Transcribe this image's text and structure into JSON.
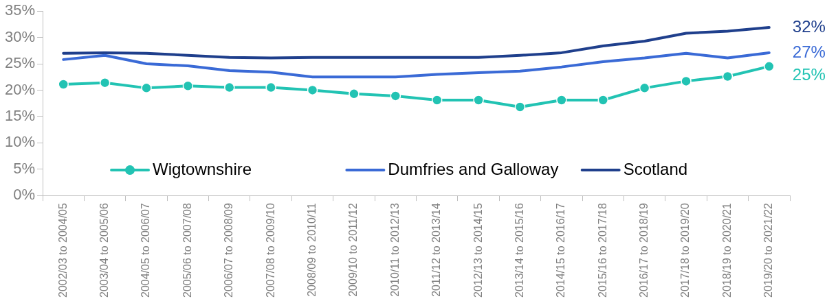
{
  "chart_data": {
    "type": "line",
    "categories": [
      "2002/03 to 2004/05",
      "2003/04 to 2005/06",
      "2004/05 to 2006/07",
      "2005/06 to 2007/08",
      "2006/07 to 2008/09",
      "2007/08 to 2009/10",
      "2008/09 to 2010/11",
      "2009/10 to 2011/12",
      "2010/11 to 2012/13",
      "2011/12 to 2013/14",
      "2012/13 to 2014/15",
      "2013/14 to 2015/16",
      "2014/15 to 2016/17",
      "2015/16 to 2017/18",
      "2016/17 to 2018/19",
      "2017/18 to 2019/20",
      "2018/19 to 2020/21",
      "2019/20 to 2021/22"
    ],
    "series": [
      {
        "name": "Wigtownshire",
        "color": "#22c3b3",
        "marker": "circle",
        "values": [
          21.1,
          21.4,
          20.4,
          20.8,
          20.5,
          20.5,
          20.0,
          19.3,
          18.9,
          18.1,
          18.1,
          16.8,
          18.1,
          18.1,
          20.4,
          21.7,
          22.6,
          24.5
        ],
        "value_labels": [
          null,
          null,
          null,
          null,
          null,
          null,
          null,
          null,
          null,
          null,
          null,
          null,
          null,
          null,
          null,
          null,
          null,
          "25%"
        ]
      },
      {
        "name": "Dumfries and Galloway",
        "color": "#3a6ad6",
        "marker": "none",
        "values": [
          25.8,
          26.6,
          25.0,
          24.6,
          23.7,
          23.4,
          22.5,
          22.5,
          22.5,
          23.0,
          23.3,
          23.6,
          24.4,
          25.4,
          26.1,
          27.0,
          26.1,
          27.1
        ],
        "value_labels": [
          null,
          null,
          null,
          null,
          null,
          null,
          null,
          null,
          null,
          null,
          null,
          null,
          null,
          null,
          null,
          null,
          null,
          "27%"
        ]
      },
      {
        "name": "Scotland",
        "color": "#1f3f8c",
        "marker": "none",
        "values": [
          27.0,
          27.1,
          27.0,
          26.6,
          26.2,
          26.1,
          26.2,
          26.2,
          26.2,
          26.2,
          26.2,
          26.6,
          27.1,
          28.4,
          29.3,
          30.8,
          31.2,
          31.9
        ],
        "value_labels": [
          null,
          null,
          null,
          null,
          null,
          null,
          null,
          null,
          null,
          null,
          null,
          null,
          null,
          null,
          null,
          null,
          null,
          "32%"
        ]
      }
    ],
    "ylim": [
      0,
      35
    ],
    "yticks": [
      {
        "value": 0,
        "label": "0%"
      },
      {
        "value": 5,
        "label": "5%"
      },
      {
        "value": 10,
        "label": "10%"
      },
      {
        "value": 15,
        "label": "15%"
      },
      {
        "value": 20,
        "label": "20%"
      },
      {
        "value": 25,
        "label": "25%"
      },
      {
        "value": 30,
        "label": "30%"
      },
      {
        "value": 35,
        "label": "35%"
      }
    ],
    "grid": false,
    "legend": "bottom"
  }
}
